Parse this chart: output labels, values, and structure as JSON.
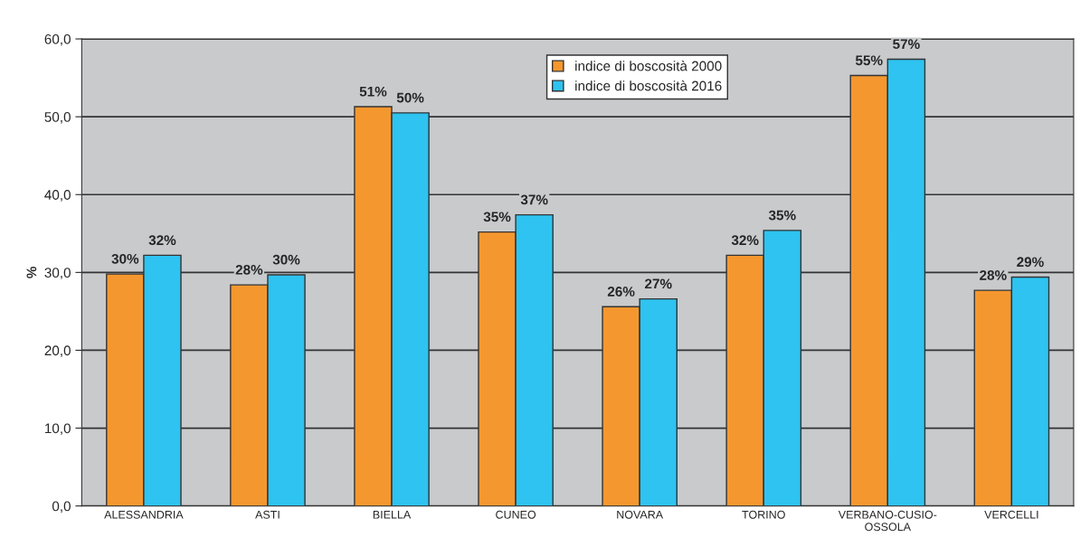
{
  "chart_data": {
    "type": "bar",
    "ylabel": "%",
    "categories": [
      "ALESSANDRIA",
      "ASTI",
      "BIELLA",
      "CUNEO",
      "NOVARA",
      "TORINO",
      "VERBANO-CUSIO-\nOSSOLA",
      "VERCELLI"
    ],
    "series": [
      {
        "name": "indice di boscosità 2000",
        "color": "#f5972f",
        "values": [
          29.8,
          28.4,
          51.3,
          35.2,
          25.6,
          32.2,
          55.3,
          27.7
        ],
        "value_labels": [
          "30%",
          "28%",
          "51%",
          "35%",
          "26%",
          "32%",
          "55%",
          "28%"
        ]
      },
      {
        "name": "indice di boscosità 2016",
        "color": "#2ec3f0",
        "values": [
          32.2,
          29.7,
          50.5,
          37.4,
          26.6,
          35.4,
          57.4,
          29.4
        ],
        "value_labels": [
          "32%",
          "30%",
          "50%",
          "37%",
          "27%",
          "35%",
          "57%",
          "29%"
        ]
      }
    ],
    "ylim": [
      0,
      60
    ],
    "yticks": [
      {
        "value": 0,
        "label": "0,0"
      },
      {
        "value": 10,
        "label": "10,0"
      },
      {
        "value": 20,
        "label": "20,0"
      },
      {
        "value": 30,
        "label": "30,0"
      },
      {
        "value": 40,
        "label": "40,0"
      },
      {
        "value": 50,
        "label": "50,0"
      },
      {
        "value": 60,
        "label": "60,0"
      }
    ],
    "grid": "y",
    "legend": "top"
  }
}
